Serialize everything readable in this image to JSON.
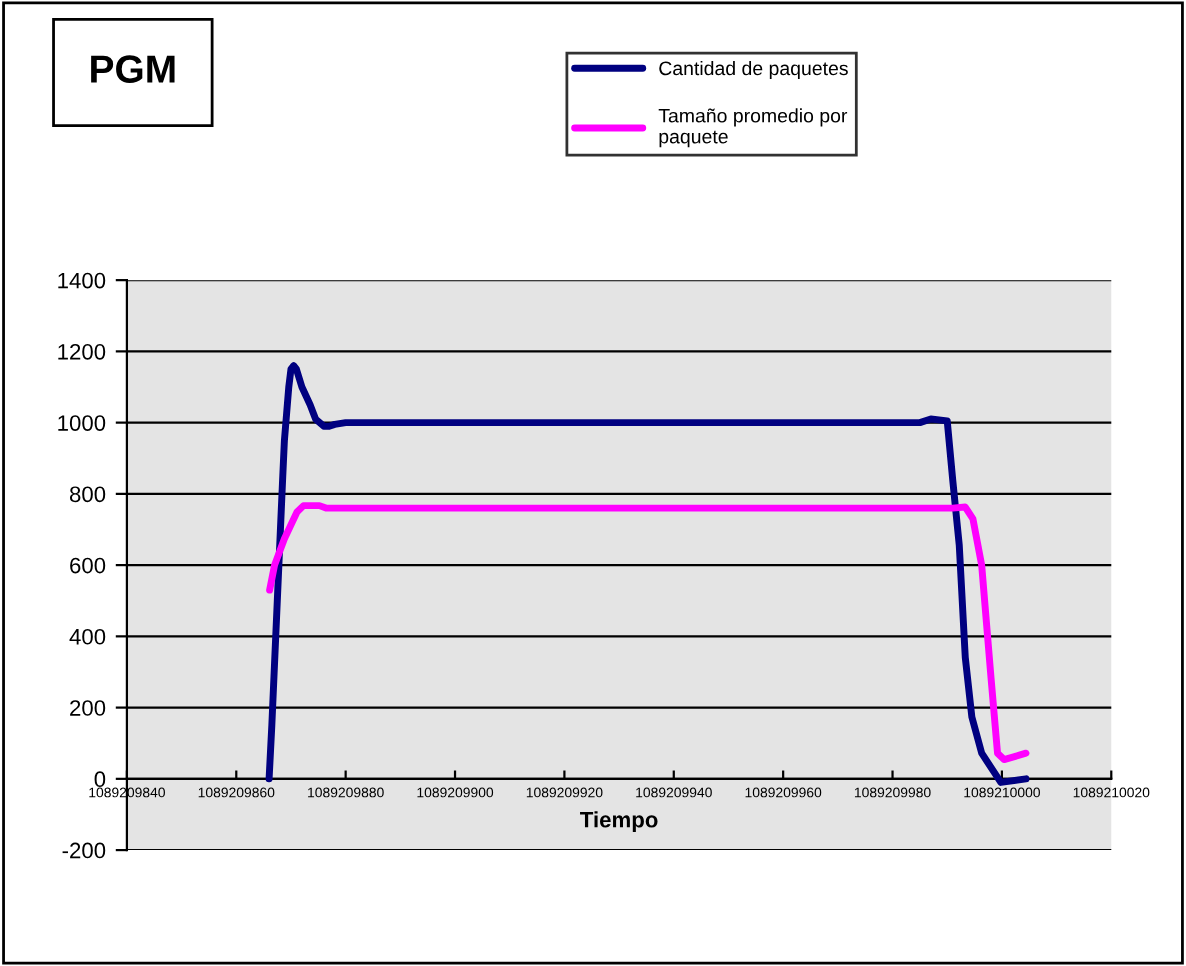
{
  "chart_data": {
    "type": "line",
    "title": "PGM",
    "xlabel": "Tiempo",
    "xlim": [
      1089209840,
      1089210020
    ],
    "xticks": [
      1089209840,
      1089209860,
      1089209880,
      1089209900,
      1089209920,
      1089209940,
      1089209960,
      1089209980,
      1089210000,
      1089210020
    ],
    "ylim": [
      -200,
      1400
    ],
    "yticks": [
      -200,
      0,
      200,
      400,
      600,
      800,
      1000,
      1200,
      1400
    ],
    "grid": "y",
    "legend": "top",
    "marker": "none",
    "line_style": "solid",
    "series": [
      {
        "name": "Cantidad de paquetes",
        "color": "#000080",
        "x": [
          1089209866,
          1089209866.5,
          1089209867.5,
          1089209868.5,
          1089209868.8,
          1089209869.6,
          1089209870,
          1089209870.5,
          1089209871,
          1089209872,
          1089209873.5,
          1089209874.5,
          1089209876,
          1089209877,
          1089209878,
          1089209880,
          1089209985,
          1089209987,
          1089209990,
          1089209991,
          1089209992.2,
          1089209993.3,
          1089209994.5,
          1089209996.3,
          1089209999.8,
          1089210004.4
        ],
        "values": [
          0,
          150,
          500,
          850,
          950,
          1100,
          1150,
          1160,
          1150,
          1100,
          1050,
          1010,
          990,
          990,
          995,
          1000,
          1000,
          1010,
          1005,
          840,
          656,
          341,
          174,
          72,
          -10,
          0
        ]
      },
      {
        "name": "Tamaño promedio por\npaquete",
        "color": "#ff00ff",
        "x": [
          1089209866.1,
          1089209867,
          1089209868.8,
          1089209871.1,
          1089209872.3,
          1089209875.2,
          1089209876.4,
          1089209991,
          1089209993.3,
          1089209994.7,
          1089209996.3,
          1089209998,
          1089209999.2,
          1089210000.4,
          1089210004.4
        ],
        "values": [
          530,
          600,
          674,
          749,
          767,
          767,
          760,
          760,
          763,
          730,
          600,
          285,
          72,
          54,
          72
        ]
      }
    ]
  }
}
